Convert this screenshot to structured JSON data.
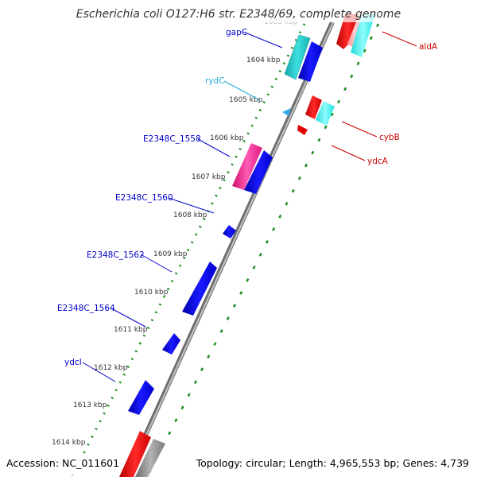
{
  "title": "Escherichia coli O127:H6 str. E2348/69, complete genome",
  "accession": "Accession: NC_011601",
  "topology": "Topology: circular; Length: 4,965,553 bp; Genes: 4,739",
  "kbp_labels": [
    "1604 kbp",
    "1605 kbp",
    "1606 kbp",
    "1607 kbp",
    "1608 kbp",
    "1609 kbp",
    "1610 kbp",
    "1611 kbp",
    "1612 kbp",
    "1613 kbp",
    "1614 kbp"
  ],
  "faded_top_label": "1603 kbp",
  "gene_labels": {
    "gapC": "gapC",
    "rydC": "rydC",
    "E2348C_1558": "E2348C_1558",
    "E2348C_1560": "E2348C_1560",
    "E2348C_1562": "E2348C_1562",
    "E2348C_1564": "E2348C_1564",
    "ydcI": "ydcI",
    "aldA": "aldA",
    "cybB": "cybB",
    "ydcA": "ydcA"
  },
  "colors": {
    "backbone": "#8a8a8a",
    "ticks": "#1e8c1e",
    "cds_blue": "#0000dd",
    "cds_teal": "#22c4c4",
    "cds_cyan": "#33f0f0",
    "cds_red": "#e00000",
    "cds_magenta": "#ff2a9a",
    "rna_light": "#33aaee",
    "label_blue": "#0000cc",
    "label_red": "#cc0000",
    "label_cyan": "#22aadd"
  }
}
